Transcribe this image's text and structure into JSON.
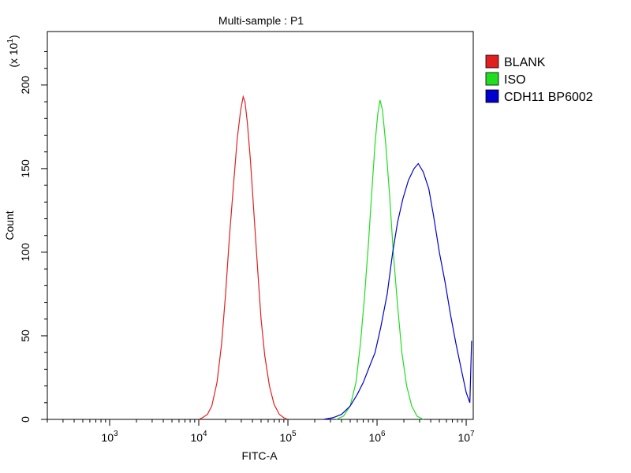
{
  "chart_data": {
    "type": "line",
    "title": "Multi-sample : P1",
    "xlabel": "FITC-A",
    "ylabel": "Count",
    "y_multiplier": "(x 10",
    "y_multiplier_exp": "1",
    "x_scale": "log",
    "xlim": [
      200,
      12000000
    ],
    "ylim": [
      0,
      232
    ],
    "x_ticks": [
      {
        "value": 1000,
        "base": "10",
        "exp": "3"
      },
      {
        "value": 10000,
        "base": "10",
        "exp": "4"
      },
      {
        "value": 100000,
        "base": "10",
        "exp": "5"
      },
      {
        "value": 1000000,
        "base": "10",
        "exp": "6"
      },
      {
        "value": 10000000,
        "base": "10",
        "exp": "7"
      }
    ],
    "y_ticks": [
      {
        "value": 0,
        "label": "0"
      },
      {
        "value": 50,
        "label": "50"
      },
      {
        "value": 100,
        "label": "100"
      },
      {
        "value": 150,
        "label": "150"
      },
      {
        "value": 200,
        "label": "200"
      }
    ],
    "grid": false,
    "legend_position": "right",
    "series": [
      {
        "name": "BLANK",
        "color": "#e02020",
        "points": [
          [
            10000,
            0
          ],
          [
            11000,
            1
          ],
          [
            12500,
            3
          ],
          [
            14000,
            8
          ],
          [
            16000,
            22
          ],
          [
            18000,
            45
          ],
          [
            20000,
            75
          ],
          [
            22000,
            108
          ],
          [
            24500,
            140
          ],
          [
            27000,
            168
          ],
          [
            29500,
            185
          ],
          [
            31500,
            193
          ],
          [
            33000,
            190
          ],
          [
            35000,
            178
          ],
          [
            38000,
            155
          ],
          [
            42000,
            120
          ],
          [
            46000,
            88
          ],
          [
            50000,
            60
          ],
          [
            55000,
            38
          ],
          [
            62000,
            20
          ],
          [
            70000,
            9
          ],
          [
            80000,
            3
          ],
          [
            90000,
            1
          ],
          [
            100000,
            0
          ]
        ]
      },
      {
        "name": "ISO",
        "color": "#20dd20",
        "points": [
          [
            350000,
            0
          ],
          [
            420000,
            2
          ],
          [
            500000,
            8
          ],
          [
            580000,
            22
          ],
          [
            650000,
            45
          ],
          [
            720000,
            72
          ],
          [
            800000,
            105
          ],
          [
            870000,
            135
          ],
          [
            950000,
            165
          ],
          [
            1020000,
            183
          ],
          [
            1080000,
            191
          ],
          [
            1150000,
            185
          ],
          [
            1250000,
            165
          ],
          [
            1380000,
            135
          ],
          [
            1520000,
            100
          ],
          [
            1700000,
            68
          ],
          [
            1900000,
            40
          ],
          [
            2150000,
            20
          ],
          [
            2450000,
            8
          ],
          [
            2800000,
            2
          ],
          [
            3300000,
            0
          ]
        ]
      },
      {
        "name": "CDH11 BP6002",
        "color": "#0000cc",
        "points": [
          [
            250000,
            0
          ],
          [
            320000,
            1
          ],
          [
            400000,
            3
          ],
          [
            500000,
            8
          ],
          [
            600000,
            15
          ],
          [
            700000,
            22
          ],
          [
            800000,
            30
          ],
          [
            950000,
            40
          ],
          [
            1100000,
            55
          ],
          [
            1300000,
            75
          ],
          [
            1500000,
            100
          ],
          [
            1700000,
            118
          ],
          [
            1950000,
            132
          ],
          [
            2250000,
            143
          ],
          [
            2600000,
            150
          ],
          [
            2900000,
            153
          ],
          [
            3300000,
            148
          ],
          [
            3800000,
            138
          ],
          [
            4300000,
            122
          ],
          [
            5000000,
            100
          ],
          [
            5800000,
            82
          ],
          [
            6700000,
            62
          ],
          [
            7700000,
            45
          ],
          [
            8800000,
            30
          ],
          [
            10000000,
            16
          ],
          [
            11000000,
            10
          ],
          [
            11500000,
            47
          ]
        ]
      }
    ]
  }
}
